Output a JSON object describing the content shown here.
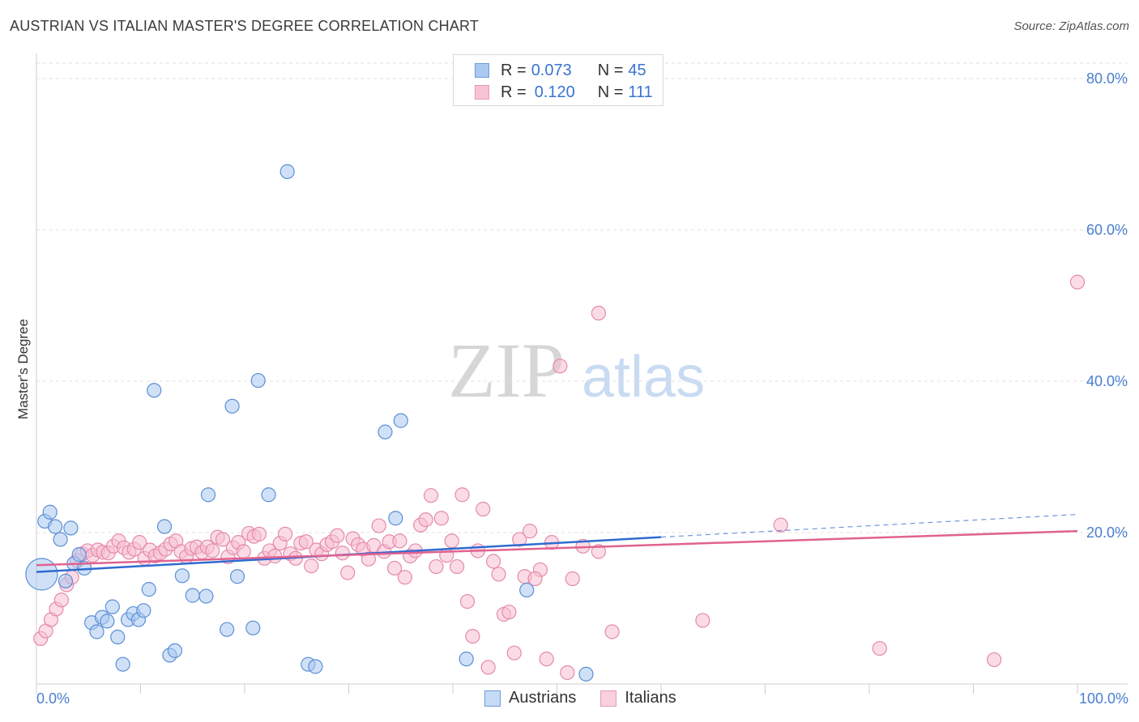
{
  "title": "AUSTRIAN VS ITALIAN MASTER'S DEGREE CORRELATION CHART",
  "source": "Source: ZipAtlas.com",
  "watermark": {
    "zip": "ZIP",
    "atlas": "atlas"
  },
  "legend": {
    "rows": [
      {
        "r_label": "R = ",
        "r_value": "0.073",
        "n_label": "N = ",
        "n_value": "45"
      },
      {
        "r_label": "R = ",
        "r_value": "0.120",
        "n_label": "N = ",
        "n_value": "111"
      }
    ]
  },
  "colors": {
    "austrians_fill": "#aac9f0",
    "austrians_stroke": "#5b8fd6",
    "austrians_line": "#2f6bd0",
    "italians_fill": "#f7bfd2",
    "italians_stroke": "#e58aaa",
    "italians_line": "#e0628f",
    "tick_text": "#4a7fd0",
    "grid": "#e2e2e2"
  },
  "chart_data": {
    "type": "scatter",
    "title": "AUSTRIAN VS ITALIAN MASTER'S DEGREE CORRELATION CHART",
    "xlabel": "",
    "ylabel": "Master's Degree",
    "xlim": [
      0,
      100
    ],
    "ylim": [
      0,
      80
    ],
    "x_tick_labels": [
      "0.0%",
      "100.0%"
    ],
    "y_ticks": [
      20,
      40,
      60,
      80
    ],
    "y_tick_labels": [
      "20.0%",
      "40.0%",
      "60.0%",
      "80.0%"
    ],
    "grid": true,
    "legend_position": "top-center",
    "series": [
      {
        "name": "Austrians",
        "r": 0.073,
        "n": 45,
        "trend": {
          "x": [
            0,
            60
          ],
          "y": [
            14.8,
            19.4
          ],
          "dashed_extension": {
            "x": [
              60,
              100
            ],
            "y": [
              19.4,
              22.4
            ]
          }
        },
        "points": [
          [
            0.5,
            14.5,
            2.3
          ],
          [
            0.8,
            21.5,
            1
          ],
          [
            1.3,
            22.7,
            1
          ],
          [
            1.8,
            20.8,
            1
          ],
          [
            2.3,
            19.1,
            1
          ],
          [
            3.3,
            20.6,
            1
          ],
          [
            3.6,
            15.9,
            1
          ],
          [
            4.1,
            17.1,
            1
          ],
          [
            4.6,
            15.3,
            1
          ],
          [
            2.8,
            13.6,
            1
          ],
          [
            5.3,
            8.1,
            1
          ],
          [
            5.8,
            6.9,
            1
          ],
          [
            6.3,
            8.8,
            1
          ],
          [
            6.8,
            8.3,
            1
          ],
          [
            7.3,
            10.2,
            1
          ],
          [
            7.8,
            6.2,
            1
          ],
          [
            8.3,
            2.6,
            1
          ],
          [
            8.8,
            8.5,
            1
          ],
          [
            9.3,
            9.3,
            1
          ],
          [
            9.8,
            8.5,
            1
          ],
          [
            10.3,
            9.7,
            1
          ],
          [
            10.8,
            12.5,
            1
          ],
          [
            11.3,
            38.8,
            1
          ],
          [
            12.3,
            20.8,
            1
          ],
          [
            12.8,
            3.8,
            1
          ],
          [
            13.3,
            4.4,
            1
          ],
          [
            14.0,
            14.3,
            1
          ],
          [
            15.0,
            11.7,
            1
          ],
          [
            16.5,
            25.0,
            1
          ],
          [
            16.3,
            11.6,
            1
          ],
          [
            18.3,
            7.2,
            1
          ],
          [
            18.8,
            36.7,
            1
          ],
          [
            19.3,
            14.2,
            1
          ],
          [
            20.8,
            7.4,
            1
          ],
          [
            21.3,
            40.1,
            1
          ],
          [
            22.3,
            25.0,
            1
          ],
          [
            24.1,
            67.7,
            1
          ],
          [
            26.1,
            2.6,
            1
          ],
          [
            26.8,
            2.3,
            1
          ],
          [
            33.5,
            33.3,
            1
          ],
          [
            34.5,
            21.9,
            1
          ],
          [
            35.0,
            34.8,
            1
          ],
          [
            41.3,
            3.3,
            1
          ],
          [
            47.1,
            12.4,
            1
          ],
          [
            52.8,
            1.3,
            1
          ]
        ]
      },
      {
        "name": "Italians",
        "r": 0.12,
        "n": 111,
        "trend": {
          "x": [
            0,
            100
          ],
          "y": [
            15.7,
            20.2
          ]
        },
        "points": [
          [
            0.4,
            6.0,
            1
          ],
          [
            0.9,
            7.0,
            1
          ],
          [
            1.4,
            8.5,
            1
          ],
          [
            1.9,
            9.9,
            1
          ],
          [
            2.4,
            11.1,
            1
          ],
          [
            2.9,
            13.1,
            1
          ],
          [
            3.4,
            14.1,
            1
          ],
          [
            3.9,
            16.3,
            1
          ],
          [
            4.4,
            17.2,
            1
          ],
          [
            4.9,
            17.6,
            1
          ],
          [
            5.4,
            17.0,
            1
          ],
          [
            5.9,
            17.7,
            1
          ],
          [
            6.4,
            17.4,
            1
          ],
          [
            6.9,
            17.3,
            1
          ],
          [
            7.4,
            18.2,
            1
          ],
          [
            7.9,
            18.9,
            1
          ],
          [
            8.4,
            18.0,
            1
          ],
          [
            8.9,
            17.4,
            1
          ],
          [
            9.4,
            17.8,
            1
          ],
          [
            9.9,
            18.7,
            1
          ],
          [
            10.4,
            16.6,
            1
          ],
          [
            10.9,
            17.7,
            1
          ],
          [
            11.4,
            16.9,
            1
          ],
          [
            11.9,
            17.3,
            1
          ],
          [
            12.4,
            17.8,
            1
          ],
          [
            12.9,
            18.5,
            1
          ],
          [
            13.4,
            18.9,
            1
          ],
          [
            13.9,
            17.5,
            1
          ],
          [
            14.4,
            16.8,
            1
          ],
          [
            14.9,
            17.9,
            1
          ],
          [
            15.4,
            18.1,
            1
          ],
          [
            15.9,
            17.4,
            1
          ],
          [
            16.4,
            18.1,
            1
          ],
          [
            16.9,
            17.6,
            1
          ],
          [
            17.4,
            19.4,
            1
          ],
          [
            17.9,
            19.1,
            1
          ],
          [
            18.4,
            16.8,
            1
          ],
          [
            18.9,
            18.0,
            1
          ],
          [
            19.4,
            18.7,
            1
          ],
          [
            19.9,
            17.5,
            1
          ],
          [
            20.4,
            19.9,
            1
          ],
          [
            20.9,
            19.5,
            1
          ],
          [
            21.4,
            19.8,
            1
          ],
          [
            21.9,
            16.6,
            1
          ],
          [
            22.4,
            17.6,
            1
          ],
          [
            22.9,
            16.9,
            1
          ],
          [
            23.4,
            18.6,
            1
          ],
          [
            23.9,
            19.8,
            1
          ],
          [
            24.4,
            17.2,
            1
          ],
          [
            24.9,
            16.6,
            1
          ],
          [
            25.4,
            18.6,
            1
          ],
          [
            25.9,
            18.8,
            1
          ],
          [
            26.4,
            15.6,
            1
          ],
          [
            26.9,
            17.7,
            1
          ],
          [
            27.4,
            17.2,
            1
          ],
          [
            27.9,
            18.4,
            1
          ],
          [
            28.4,
            18.8,
            1
          ],
          [
            28.9,
            19.6,
            1
          ],
          [
            29.4,
            17.3,
            1
          ],
          [
            29.9,
            14.7,
            1
          ],
          [
            30.4,
            19.2,
            1
          ],
          [
            30.9,
            18.4,
            1
          ],
          [
            31.4,
            17.8,
            1
          ],
          [
            31.9,
            16.5,
            1
          ],
          [
            32.4,
            18.3,
            1
          ],
          [
            32.9,
            20.9,
            1
          ],
          [
            33.4,
            17.5,
            1
          ],
          [
            33.9,
            18.8,
            1
          ],
          [
            34.4,
            15.3,
            1
          ],
          [
            34.9,
            18.9,
            1
          ],
          [
            35.4,
            14.1,
            1
          ],
          [
            35.9,
            16.9,
            1
          ],
          [
            36.4,
            17.6,
            1
          ],
          [
            36.9,
            21.0,
            1
          ],
          [
            37.4,
            21.7,
            1
          ],
          [
            37.9,
            24.9,
            1
          ],
          [
            38.4,
            15.5,
            1
          ],
          [
            38.9,
            21.9,
            1
          ],
          [
            39.4,
            17.0,
            1
          ],
          [
            39.9,
            18.9,
            1
          ],
          [
            40.4,
            15.5,
            1
          ],
          [
            40.9,
            25.0,
            1
          ],
          [
            41.4,
            10.9,
            1
          ],
          [
            41.9,
            6.3,
            1
          ],
          [
            42.4,
            17.6,
            1
          ],
          [
            42.9,
            23.1,
            1
          ],
          [
            43.4,
            2.2,
            1
          ],
          [
            43.9,
            16.2,
            1
          ],
          [
            44.4,
            14.5,
            1
          ],
          [
            44.9,
            9.2,
            1
          ],
          [
            45.4,
            9.5,
            1
          ],
          [
            45.9,
            4.1,
            1
          ],
          [
            46.4,
            19.1,
            1
          ],
          [
            46.9,
            14.2,
            1
          ],
          [
            47.4,
            20.2,
            1
          ],
          [
            48.4,
            15.1,
            1
          ],
          [
            49.0,
            3.3,
            1
          ],
          [
            49.5,
            18.7,
            1
          ],
          [
            50.3,
            42.0,
            1
          ],
          [
            51.0,
            1.5,
            1
          ],
          [
            51.5,
            13.9,
            1
          ],
          [
            52.5,
            18.2,
            1
          ],
          [
            54.0,
            17.5,
            1
          ],
          [
            54.0,
            49.0,
            1
          ],
          [
            55.3,
            6.9,
            1
          ],
          [
            64.0,
            8.4,
            1
          ],
          [
            71.5,
            21.0,
            1
          ],
          [
            81.0,
            4.7,
            1
          ],
          [
            92.0,
            3.2,
            1
          ],
          [
            100.0,
            53.1,
            1
          ],
          [
            47.9,
            13.9,
            1
          ]
        ]
      }
    ]
  },
  "bottom_legend": {
    "items": [
      "Austrians",
      "Italians"
    ]
  }
}
